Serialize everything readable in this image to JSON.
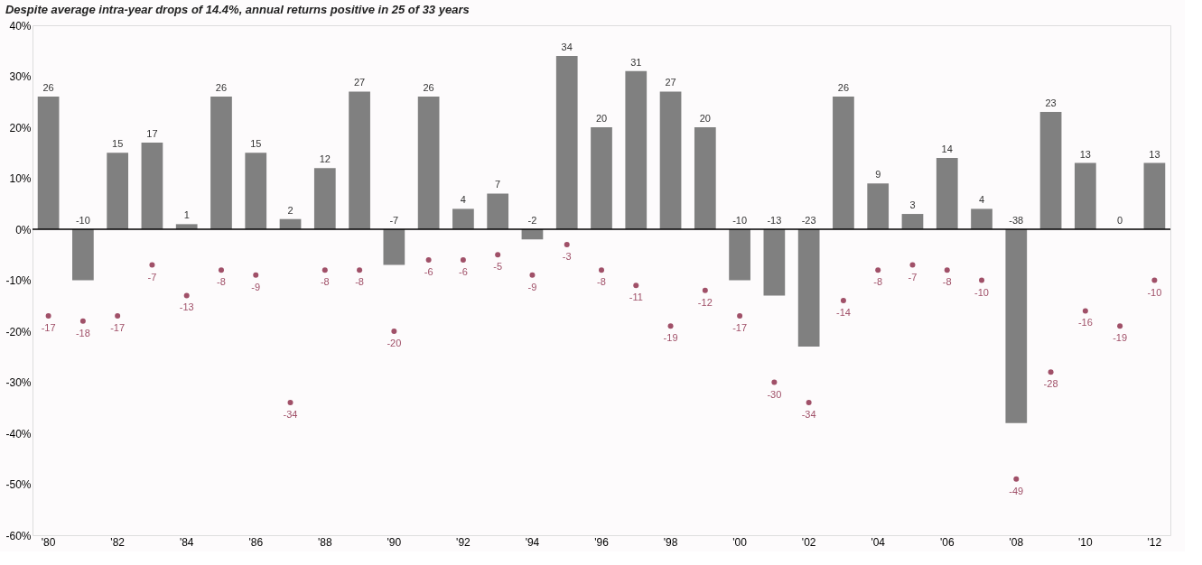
{
  "chart_data": {
    "type": "bar",
    "title": "Despite average intra-year drops of 14.4%, annual returns positive in 25 of 33 years",
    "categories": [
      "'80",
      null,
      "'82",
      null,
      "'84",
      null,
      "'86",
      null,
      "'88",
      null,
      "'90",
      null,
      "'92",
      null,
      "'94",
      null,
      "'96",
      null,
      "'98",
      null,
      "'00",
      null,
      "'02",
      null,
      "'04",
      null,
      "'06",
      null,
      "'08",
      null,
      "'10",
      null,
      "'12"
    ],
    "series": [
      {
        "color": "#808080",
        "values": [
          26,
          -10,
          15,
          17,
          1,
          26,
          15,
          2,
          12,
          27,
          -7,
          26,
          4,
          7,
          -2,
          34,
          20,
          31,
          27,
          20,
          -10,
          -13,
          -23,
          26,
          9,
          3,
          14,
          4,
          -38,
          23,
          13,
          0,
          13
        ]
      },
      {
        "type": "scatter",
        "color": "#a05068",
        "marker": "circle",
        "values": [
          -17,
          -18,
          -17,
          -7,
          -13,
          -8,
          -9,
          -34,
          -8,
          -8,
          -20,
          -6,
          -6,
          -5,
          -9,
          -3,
          -8,
          -11,
          -19,
          -12,
          -17,
          -30,
          -34,
          -14,
          -8,
          -7,
          -8,
          -10,
          -49,
          -28,
          -16,
          -19,
          -10
        ]
      }
    ],
    "ylim": [
      -60,
      40
    ],
    "yticks": [
      {
        "value": -60,
        "label": "-60%"
      },
      {
        "value": -50,
        "label": "-50%"
      },
      {
        "value": -40,
        "label": "-40%"
      },
      {
        "value": -30,
        "label": "-30%"
      },
      {
        "value": -20,
        "label": "-20%"
      },
      {
        "value": -10,
        "label": "-10%"
      },
      {
        "value": 0,
        "label": "0%"
      },
      {
        "value": 10,
        "label": "10%"
      },
      {
        "value": 20,
        "label": "20%"
      },
      {
        "value": 30,
        "label": "30%"
      },
      {
        "value": 40,
        "label": "40%"
      }
    ],
    "ref_lines": [
      {
        "axis": "y",
        "value": 0,
        "color": "#000000"
      }
    ],
    "data_labels": true,
    "grid": false
  }
}
